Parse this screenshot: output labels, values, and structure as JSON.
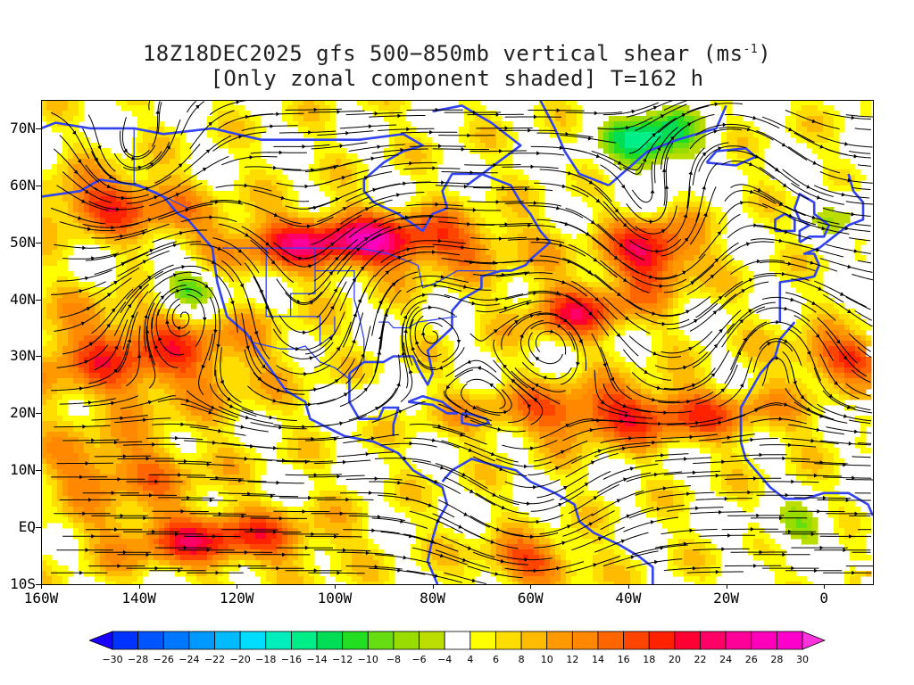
{
  "title": {
    "line1_main": "18Z18DEC2025 gfs 500−850mb vertical shear (ms",
    "line1_sup": "-1",
    "line1_end": ")",
    "line2": "[Only zonal component shaded] T=162 h"
  },
  "map": {
    "region": "North Atlantic / North America / Eastern Pacific",
    "lat_range": [
      -10,
      75
    ],
    "lon_range": [
      -160,
      10
    ],
    "lat_labels": [
      "70N",
      "60N",
      "50N",
      "40N",
      "30N",
      "20N",
      "10N",
      "EQ",
      "10S"
    ],
    "lon_labels": [
      "160W",
      "140W",
      "120W",
      "100W",
      "80W",
      "60W",
      "40W",
      "20W",
      "0"
    ],
    "coastline_color": "#3344ee",
    "streamline_color": "#000000"
  },
  "colorbar": {
    "labels": [
      "-30",
      "-28",
      "-26",
      "-24",
      "-22",
      "-20",
      "-18",
      "-16",
      "-14",
      "-12",
      "-10",
      "-8",
      "-6",
      "-4",
      "4",
      "6",
      "8",
      "10",
      "12",
      "14",
      "16",
      "18",
      "20",
      "22",
      "24",
      "26",
      "28",
      "30"
    ],
    "colors": [
      "#1a00ff",
      "#0033ff",
      "#0055ff",
      "#0077ff",
      "#0099ff",
      "#00bbff",
      "#00ddff",
      "#00eebb",
      "#00ee88",
      "#00dd55",
      "#22dd22",
      "#66dd11",
      "#99dd00",
      "#bbdd00",
      "#ffffff",
      "#ffff00",
      "#ffdd00",
      "#ffbb00",
      "#ff9900",
      "#ff8800",
      "#ff6600",
      "#ff4400",
      "#ff2200",
      "#ff0033",
      "#ff0066",
      "#ff0099",
      "#ff00bb",
      "#ff00cc",
      "#ff33dd"
    ]
  }
}
